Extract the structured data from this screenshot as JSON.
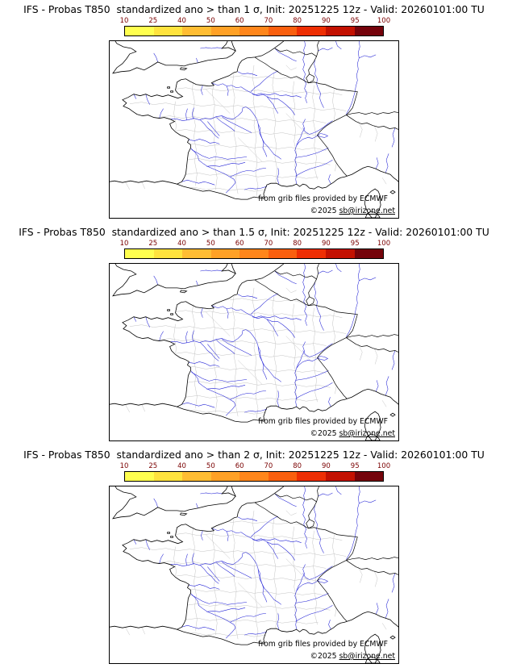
{
  "panels": [
    {
      "title": "IFS - Probas T850  standardized ano > than 1 σ, Init: 20251225 12z - Valid: 20260101:00 TU"
    },
    {
      "title": "IFS - Probas T850  standardized ano > than 1.5 σ, Init: 20251225 12z - Valid: 20260101:00 TU"
    },
    {
      "title": "IFS - Probas T850  standardized ano > than 2 σ, Init: 20251225 12z - Valid: 20260101:00 TU"
    }
  ],
  "colorbar": {
    "ticks": [
      "10",
      "25",
      "40",
      "50",
      "60",
      "70",
      "80",
      "90",
      "95",
      "100"
    ],
    "colors": [
      "#ffff4f",
      "#ffe33e",
      "#ffbd33",
      "#ffa126",
      "#ff861b",
      "#fa5f0e",
      "#ee2e03",
      "#c31101",
      "#75030b"
    ],
    "tick_color": "#7a0000",
    "border_color": "#000000"
  },
  "map": {
    "source_note": "from grib files provided by ECMWF",
    "copyright_prefix": "©2025 ",
    "copyright_link": "sb@irizone.net",
    "coast_color": "#000000",
    "river_color": "#2424d6",
    "department_color": "#c3c3c3"
  }
}
